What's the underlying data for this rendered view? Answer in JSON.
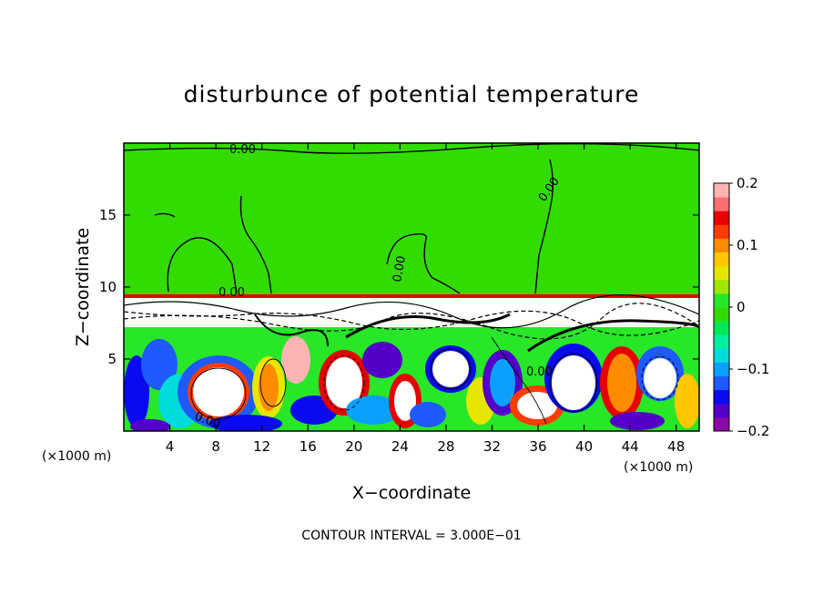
{
  "chart_data": {
    "type": "heatmap",
    "title": "disturbunce of potential temperature",
    "xlabel": "X−coordinate",
    "ylabel": "Z−coordinate",
    "x_unit_left": "(×1000 m)",
    "x_unit_right": "(×1000 m)",
    "xlim": [
      0,
      50
    ],
    "ylim": [
      0,
      20
    ],
    "x_ticks": [
      4,
      8,
      12,
      16,
      20,
      24,
      28,
      32,
      36,
      40,
      44,
      48
    ],
    "y_ticks": [
      5,
      10,
      15
    ],
    "colorbar": {
      "range": [
        -0.2,
        0.2
      ],
      "tick_values": [
        0.2,
        0.1,
        0,
        -0.1,
        -0.2
      ],
      "tick_labels": [
        "0.2",
        "0.1",
        "0",
        "−0.1",
        "−0.2"
      ],
      "colors": [
        "#8b0aa5",
        "#5200c8",
        "#0a0af0",
        "#1e5aff",
        "#0aa0ff",
        "#00dcdc",
        "#00f0a0",
        "#00e65a",
        "#32dc00",
        "#28e628",
        "#a0e600",
        "#e6e600",
        "#ffc800",
        "#ff8c00",
        "#ff3c00",
        "#e60000",
        "#ff6e6e",
        "#ffb4b4"
      ]
    },
    "contour_labels": [
      "0.00",
      "0.00",
      "0.00",
      "0.00",
      "0.00",
      "0.00"
    ],
    "contour_interval_text": "CONTOUR INTERVAL = 3.000E−01",
    "grid": false
  }
}
